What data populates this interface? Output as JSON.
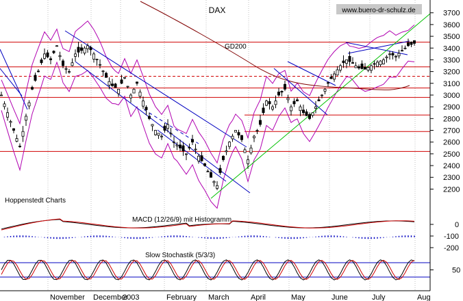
{
  "chart_data": {
    "type": "candlestick",
    "title": "DAX",
    "watermark": "www.buero-dr-schulz.de",
    "source_label": "Hoppenstedt Charts",
    "x_months": [
      "November",
      "December",
      "2003",
      "February",
      "March",
      "April",
      "May",
      "June",
      "July",
      "Aug"
    ],
    "y_ticks": [
      2200,
      2300,
      2400,
      2500,
      2600,
      2700,
      2800,
      2900,
      3000,
      3100,
      3200,
      3300,
      3400,
      3500,
      3600,
      3700
    ],
    "ylim": [
      2150,
      3750
    ],
    "ma_label": "GD200",
    "price_path": [
      [
        0,
        3000
      ],
      [
        2,
        2850
      ],
      [
        4,
        2700
      ],
      [
        6,
        2560
      ],
      [
        8,
        2820
      ],
      [
        10,
        3050
      ],
      [
        12,
        3200
      ],
      [
        14,
        3350
      ],
      [
        16,
        3300
      ],
      [
        18,
        3420
      ],
      [
        20,
        3250
      ],
      [
        22,
        3200
      ],
      [
        24,
        3350
      ],
      [
        26,
        3380
      ],
      [
        28,
        3420
      ],
      [
        30,
        3350
      ],
      [
        32,
        3260
      ],
      [
        34,
        3150
      ],
      [
        36,
        3080
      ],
      [
        38,
        3050
      ],
      [
        40,
        3150
      ],
      [
        42,
        3000
      ],
      [
        44,
        3100
      ],
      [
        46,
        2950
      ],
      [
        48,
        2800
      ],
      [
        50,
        2700
      ],
      [
        52,
        2650
      ],
      [
        54,
        2750
      ],
      [
        56,
        2600
      ],
      [
        58,
        2550
      ],
      [
        60,
        2500
      ],
      [
        62,
        2600
      ],
      [
        64,
        2480
      ],
      [
        66,
        2400
      ],
      [
        68,
        2300
      ],
      [
        70,
        2230
      ],
      [
        72,
        2450
      ],
      [
        74,
        2600
      ],
      [
        76,
        2700
      ],
      [
        78,
        2620
      ],
      [
        80,
        2450
      ],
      [
        82,
        2650
      ],
      [
        84,
        2750
      ],
      [
        86,
        2950
      ],
      [
        88,
        2900
      ],
      [
        90,
        3000
      ],
      [
        92,
        3050
      ],
      [
        94,
        2900
      ],
      [
        96,
        2950
      ],
      [
        98,
        2850
      ],
      [
        100,
        2800
      ],
      [
        102,
        2900
      ],
      [
        104,
        3000
      ],
      [
        106,
        3100
      ],
      [
        108,
        3180
      ],
      [
        110,
        3250
      ],
      [
        112,
        3300
      ],
      [
        114,
        3270
      ],
      [
        116,
        3230
      ],
      [
        118,
        3220
      ],
      [
        120,
        3250
      ],
      [
        122,
        3280
      ],
      [
        124,
        3300
      ],
      [
        126,
        3350
      ],
      [
        128,
        3330
      ],
      [
        130,
        3380
      ],
      [
        132,
        3420
      ],
      [
        134,
        3440
      ]
    ],
    "horizontal_levels": [
      3450,
      3240,
      3160,
      3060,
      2980,
      2830,
      2690,
      2520
    ],
    "dashed_level": 3160,
    "macd": {
      "label": "MACD (12/26/9) mit Histogramm",
      "y_ticks": [
        0,
        -100,
        -200
      ],
      "ylim": [
        -280,
        120
      ]
    },
    "stochastic": {
      "label": "Slow Stochastik (5/3/3)",
      "y_ticks": [
        50
      ],
      "upper": 80,
      "lower": 20
    }
  }
}
